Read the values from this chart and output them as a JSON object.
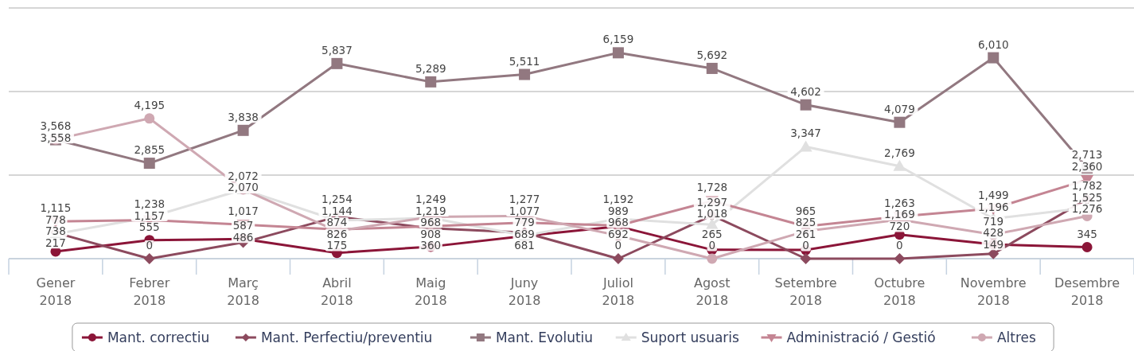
{
  "chart_data": {
    "type": "line",
    "categories": [
      "Gener 2018",
      "Febrer 2018",
      "Març 2018",
      "Abril 2018",
      "Maig 2018",
      "Juny 2018",
      "Juliol 2018",
      "Agost 2018",
      "Setembre 2018",
      "Octubre 2018",
      "Novembre 2018",
      "Desembre 2018"
    ],
    "ylim": [
      0,
      7500
    ],
    "yticks": [
      {
        "value": 0,
        "label": null
      },
      {
        "value": 2500,
        "label": null
      },
      {
        "value": 5000,
        "label": null
      },
      {
        "value": 7500,
        "label": null
      }
    ],
    "tick_labels": "x",
    "grid": "y",
    "legend": "bottom",
    "series": [
      {
        "name": "Mant. correctiu",
        "color": "#8b1538",
        "marker": "circle",
        "values": [
          217,
          555,
          587,
          175,
          360,
          681,
          968,
          265,
          261,
          720,
          428,
          345
        ],
        "value_labels": [
          "217",
          "555",
          "587",
          "175",
          "360",
          "681",
          "968",
          "265",
          "261",
          "720",
          "428",
          "345"
        ]
      },
      {
        "name": "Mant. Perfectiu/preventiu",
        "color": "#8c4a5e",
        "marker": "diamond",
        "values": [
          778,
          0,
          486,
          1254,
          908,
          779,
          0,
          1297,
          0,
          0,
          149,
          1782
        ],
        "value_labels": [
          "778",
          "0",
          "486",
          "1,254",
          "908",
          "779",
          "0",
          "1,297",
          "0",
          "0",
          "149",
          "1,782"
        ]
      },
      {
        "name": "Mant. Evolutiu",
        "color": "#927880",
        "marker": "square",
        "values": [
          3558,
          2855,
          3838,
          5837,
          5289,
          5511,
          6159,
          5692,
          4602,
          4079,
          6010,
          2713
        ],
        "value_labels": [
          "3,558",
          "2,855",
          "3,838",
          "5,837",
          "5,289",
          "5,511",
          "6,159",
          "5,692",
          "4,602",
          "4,079",
          "6,010",
          "2,713"
        ]
      },
      {
        "name": "Suport usuaris",
        "color": "#e0e0e0",
        "marker": "triangle",
        "values": [
          738,
          1238,
          2070,
          1144,
          1219,
          689,
          1192,
          1018,
          3347,
          2769,
          1196,
          1525
        ],
        "value_labels": [
          "738",
          "1,238",
          "2,070",
          "1,144",
          "1,219",
          "689",
          "1,192",
          "1,018",
          "3,347",
          "2,769",
          "1,196",
          "1,525"
        ]
      },
      {
        "name": "Administració / Gestió",
        "color": "#c48593",
        "marker": "triangle-down",
        "values": [
          1115,
          1157,
          1017,
          874,
          968,
          1077,
          989,
          1728,
          965,
          1263,
          1499,
          2360
        ],
        "value_labels": [
          "1,115",
          "1,157",
          "1,017",
          "874",
          "968",
          "1,077",
          "989",
          "1,728",
          "965",
          "1,263",
          "1,499",
          "2,360"
        ]
      },
      {
        "name": "Altres",
        "color": "#cfa8b2",
        "marker": "circle",
        "values": [
          3568,
          4195,
          2072,
          826,
          1249,
          1277,
          692,
          0,
          825,
          1169,
          719,
          1276
        ],
        "value_labels": [
          "3,568",
          "4,195",
          "2,072",
          "826",
          "1,249",
          "1,277",
          "692",
          "0",
          "825",
          "1,169",
          "719",
          "1,276"
        ]
      }
    ]
  }
}
